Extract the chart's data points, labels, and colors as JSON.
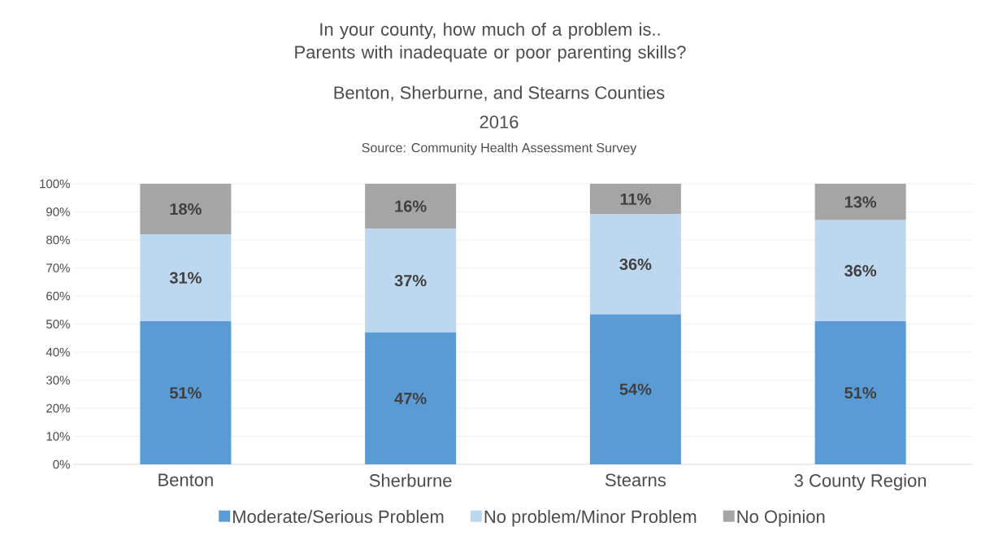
{
  "chart_data": {
    "type": "bar",
    "stacked": true,
    "title": "In your county, how much of a problem is.. Parents with inadequate or poor parenting skills?",
    "subtitle": "Benton, Sherburne, and Stearns Counties",
    "annotations": [
      "2016",
      "Source: Community Health Assessment Survey"
    ],
    "categories": [
      "Benton",
      "Sherburne",
      "Stearns",
      "3 County Region"
    ],
    "series": [
      {
        "name": "Moderate/Serious Problem",
        "color": "#5b9bd5",
        "values": [
          51,
          47,
          53.5,
          51
        ],
        "value_labels": [
          "51%",
          "47%",
          "54%",
          "51%"
        ]
      },
      {
        "name": "No problem/Minor Problem",
        "color": "#bdd7ee",
        "values": [
          31,
          37,
          35.6,
          36
        ],
        "value_labels": [
          "31%",
          "37%",
          "36%",
          "36%"
        ]
      },
      {
        "name": "No Opinion",
        "color": "#a5a5a5",
        "values": [
          18,
          16,
          10.9,
          13
        ],
        "value_labels": [
          "18%",
          "16%",
          "11%",
          "13%"
        ]
      }
    ],
    "ylim": [
      0,
      100
    ],
    "yticks": [
      {
        "value": 0,
        "label": "0%"
      },
      {
        "value": 10,
        "label": "10%"
      },
      {
        "value": 20,
        "label": "20%"
      },
      {
        "value": 30,
        "label": "30%"
      },
      {
        "value": 40,
        "label": "40%"
      },
      {
        "value": 50,
        "label": "50%"
      },
      {
        "value": 60,
        "label": "60%"
      },
      {
        "value": 70,
        "label": "70%"
      },
      {
        "value": 80,
        "label": "80%"
      },
      {
        "value": 90,
        "label": "90%"
      },
      {
        "value": 100,
        "label": "100%"
      }
    ],
    "grid": "y",
    "legend": "bottom"
  }
}
